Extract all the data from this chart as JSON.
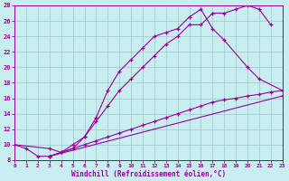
{
  "bg_color": "#c8eef0",
  "grid_color": "#9cc8d0",
  "line_color": "#990099",
  "xlabel": "Windchill (Refroidissement éolien,°C)",
  "xlim": [
    0,
    23
  ],
  "ylim": [
    8,
    28
  ],
  "xticks": [
    0,
    1,
    2,
    3,
    4,
    5,
    6,
    7,
    8,
    9,
    10,
    11,
    12,
    13,
    14,
    15,
    16,
    17,
    18,
    19,
    20,
    21,
    22,
    23
  ],
  "yticks": [
    8,
    10,
    12,
    14,
    16,
    18,
    20,
    22,
    24,
    26,
    28
  ],
  "line1_x": [
    0,
    1,
    2,
    3,
    4,
    5,
    6,
    7,
    8,
    9,
    10,
    11,
    12,
    13,
    14,
    15,
    16,
    17,
    18,
    19,
    20,
    21,
    22
  ],
  "line1_y": [
    10,
    9.5,
    8.5,
    8.5,
    9,
    10,
    11,
    13,
    15,
    17,
    18.5,
    20,
    21.5,
    23,
    24,
    25.5,
    25.5,
    27,
    27,
    27.5,
    28,
    27.5,
    25.5
  ],
  "line2_x": [
    0,
    3,
    4,
    5,
    6,
    7,
    8,
    9,
    10,
    11,
    12,
    13,
    14,
    15,
    16,
    17,
    18,
    20,
    21,
    23
  ],
  "line2_y": [
    10,
    9.5,
    9,
    9.5,
    11,
    13.5,
    17,
    19.5,
    21,
    22.5,
    24,
    24.5,
    25,
    26.5,
    27.5,
    25,
    23.5,
    20,
    18.5,
    17
  ],
  "line3_x": [
    3,
    4,
    5,
    6,
    7,
    8,
    9,
    10,
    11,
    12,
    13,
    14,
    15,
    16,
    17,
    18,
    19,
    20,
    21,
    22,
    23
  ],
  "line3_y": [
    8.5,
    9,
    9.5,
    10,
    10.5,
    11,
    11.5,
    12,
    12.5,
    13,
    13.5,
    14,
    14.5,
    15,
    15.5,
    15.8,
    16,
    16.3,
    16.5,
    16.8,
    17
  ],
  "line4_x": [
    3,
    23
  ],
  "line4_y": [
    8.5,
    16.3
  ]
}
